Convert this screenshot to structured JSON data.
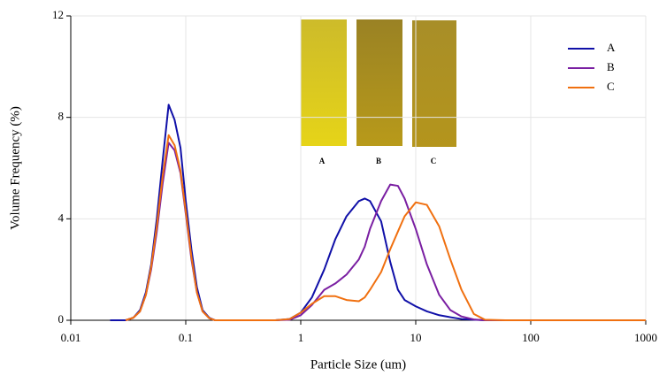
{
  "chart_data": {
    "type": "line",
    "xlabel": "Particle Size (um)",
    "ylabel": "Volume Frequency (%)",
    "log_x": true,
    "grid": true,
    "legend": "upper right",
    "xlim": [
      0.01,
      1000
    ],
    "xticks": [
      0.01,
      0.1,
      1,
      10,
      100,
      1000
    ],
    "ylim": [
      0,
      12
    ],
    "yticks": [
      0,
      4,
      8,
      12
    ],
    "x": [
      0.022,
      0.03,
      0.035,
      0.04,
      0.045,
      0.05,
      0.056,
      0.063,
      0.071,
      0.08,
      0.09,
      0.1,
      0.112,
      0.125,
      0.14,
      0.16,
      0.18,
      0.3,
      0.6,
      0.8,
      1,
      1.25,
      1.6,
      2,
      2.5,
      3.2,
      3.6,
      4,
      5,
      6,
      7,
      8,
      10,
      12.5,
      16,
      20,
      25,
      32,
      40,
      60,
      100,
      1000
    ],
    "series": [
      {
        "name": "A",
        "color": "#1010a8",
        "values": [
          0,
          0,
          0.1,
          0.4,
          1.1,
          2.2,
          4.0,
          6.3,
          8.5,
          7.9,
          6.8,
          4.7,
          2.8,
          1.3,
          0.4,
          0.1,
          0,
          0,
          0,
          0.05,
          0.3,
          0.9,
          2.0,
          3.2,
          4.1,
          4.7,
          4.8,
          4.7,
          3.9,
          2.3,
          1.2,
          0.8,
          0.55,
          0.35,
          0.2,
          0.12,
          0.05,
          0.02,
          0,
          0,
          0,
          0
        ]
      },
      {
        "name": "B",
        "color": "#7a1fa2",
        "values": [
          null,
          0,
          0.1,
          0.35,
          1.0,
          2.0,
          3.5,
          5.4,
          7.0,
          6.7,
          5.8,
          4.2,
          2.4,
          1.1,
          0.35,
          0.08,
          0,
          0,
          0,
          0.02,
          0.2,
          0.6,
          1.2,
          1.45,
          1.8,
          2.4,
          2.9,
          3.6,
          4.7,
          5.35,
          5.3,
          4.8,
          3.6,
          2.2,
          1.0,
          0.4,
          0.15,
          0.03,
          0,
          0,
          0,
          0
        ]
      },
      {
        "name": "C",
        "color": "#f07010",
        "values": [
          null,
          0,
          0.1,
          0.35,
          1.0,
          2.1,
          3.7,
          5.7,
          7.3,
          6.9,
          5.9,
          4.3,
          2.5,
          1.1,
          0.35,
          0.08,
          0,
          0,
          0,
          0.05,
          0.3,
          0.65,
          0.95,
          0.95,
          0.8,
          0.75,
          0.9,
          1.2,
          1.9,
          2.8,
          3.5,
          4.1,
          4.65,
          4.55,
          3.7,
          2.4,
          1.2,
          0.25,
          0.02,
          0,
          0,
          0
        ]
      }
    ],
    "inset_labels": [
      "A",
      "B",
      "C"
    ]
  }
}
